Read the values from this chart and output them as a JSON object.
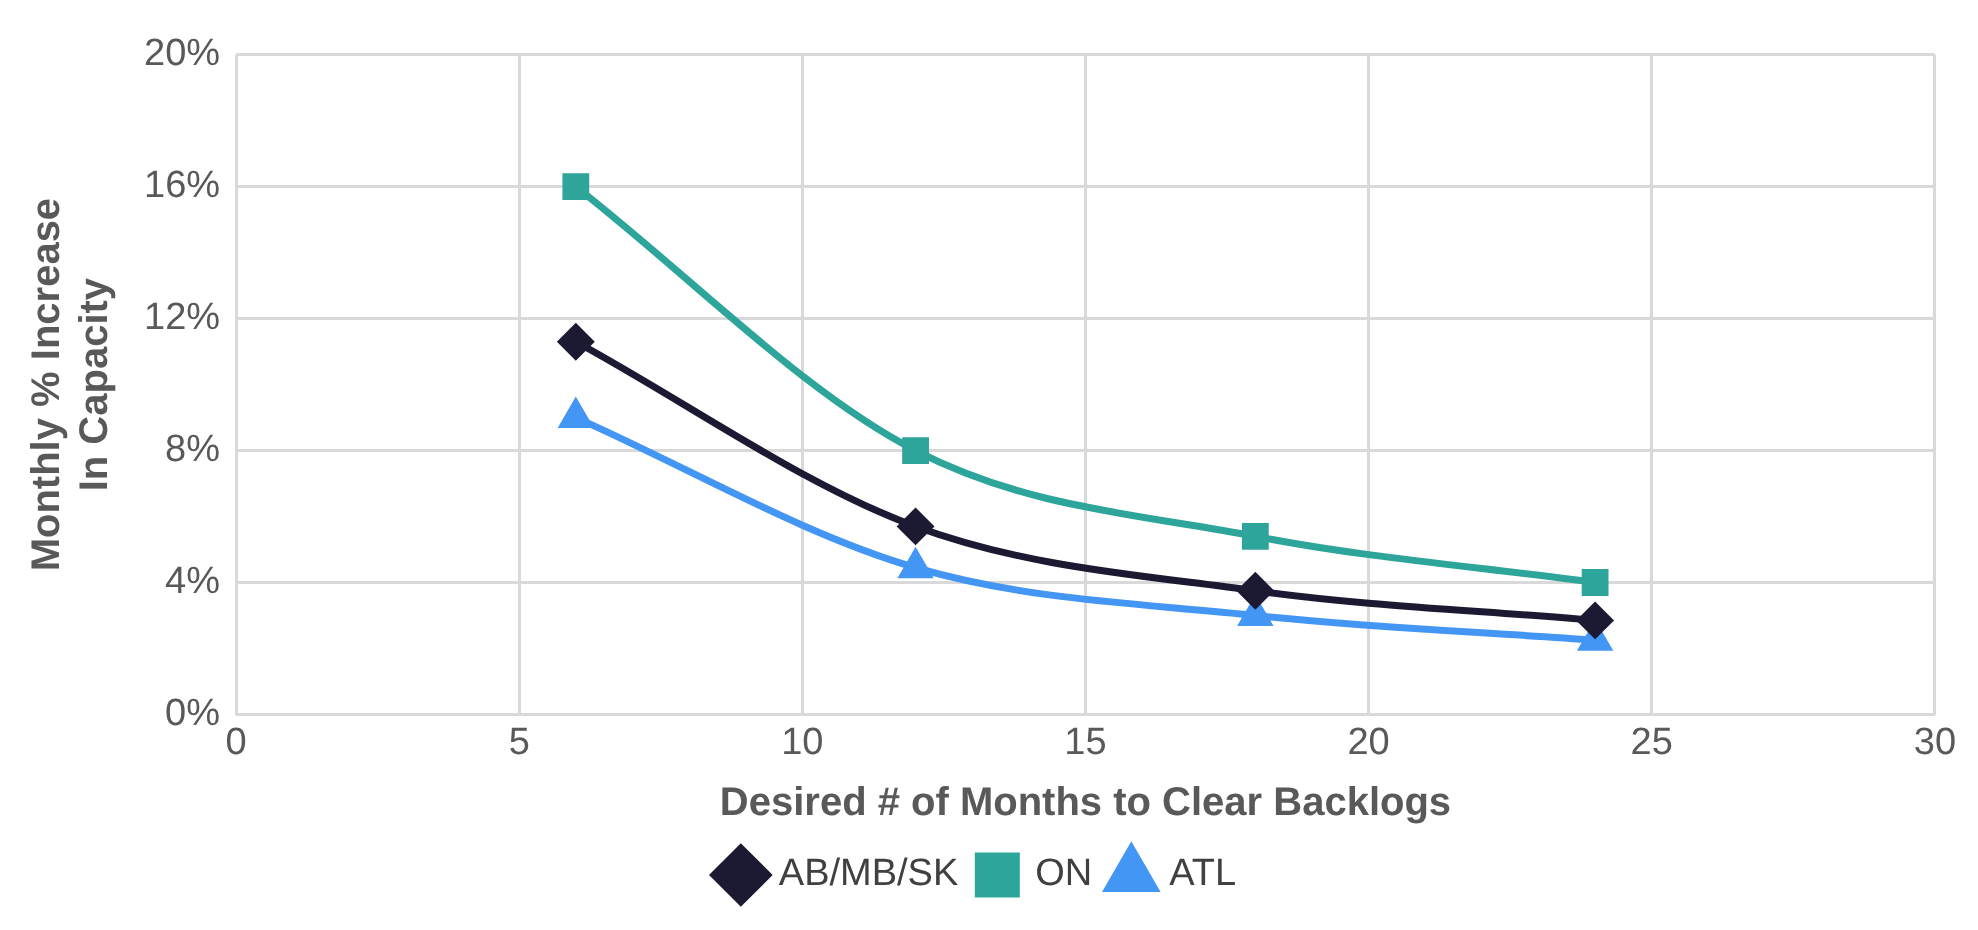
{
  "chart_data": {
    "type": "line",
    "xlabel": "Desired # of Months to Clear Backlogs",
    "ylabel": "Monthly % Increase In Capacity",
    "x": [
      6,
      12,
      18,
      24
    ],
    "series": [
      {
        "name": "AB/MB/SK",
        "color": "#1c1a33",
        "marker": "diamond",
        "values": [
          11.3,
          5.7,
          3.75,
          2.85
        ]
      },
      {
        "name": "ON",
        "color": "#2ea59a",
        "marker": "square",
        "values": [
          16,
          8,
          5.4,
          4
        ]
      },
      {
        "name": "ATL",
        "color": "#4496f5",
        "marker": "triangle",
        "values": [
          9,
          4.45,
          3,
          2.25
        ]
      }
    ],
    "xlim": [
      0,
      30
    ],
    "xticks": [
      0,
      5,
      10,
      15,
      20,
      25,
      30
    ],
    "ylim": [
      0,
      20
    ],
    "yticks": [
      {
        "value": 0,
        "label": "0%"
      },
      {
        "value": 4,
        "label": "4%"
      },
      {
        "value": 8,
        "label": "8%"
      },
      {
        "value": 12,
        "label": "12%"
      },
      {
        "value": 16,
        "label": "16%"
      },
      {
        "value": 20,
        "label": "20%"
      }
    ],
    "grid": true,
    "legend": "bottom"
  }
}
